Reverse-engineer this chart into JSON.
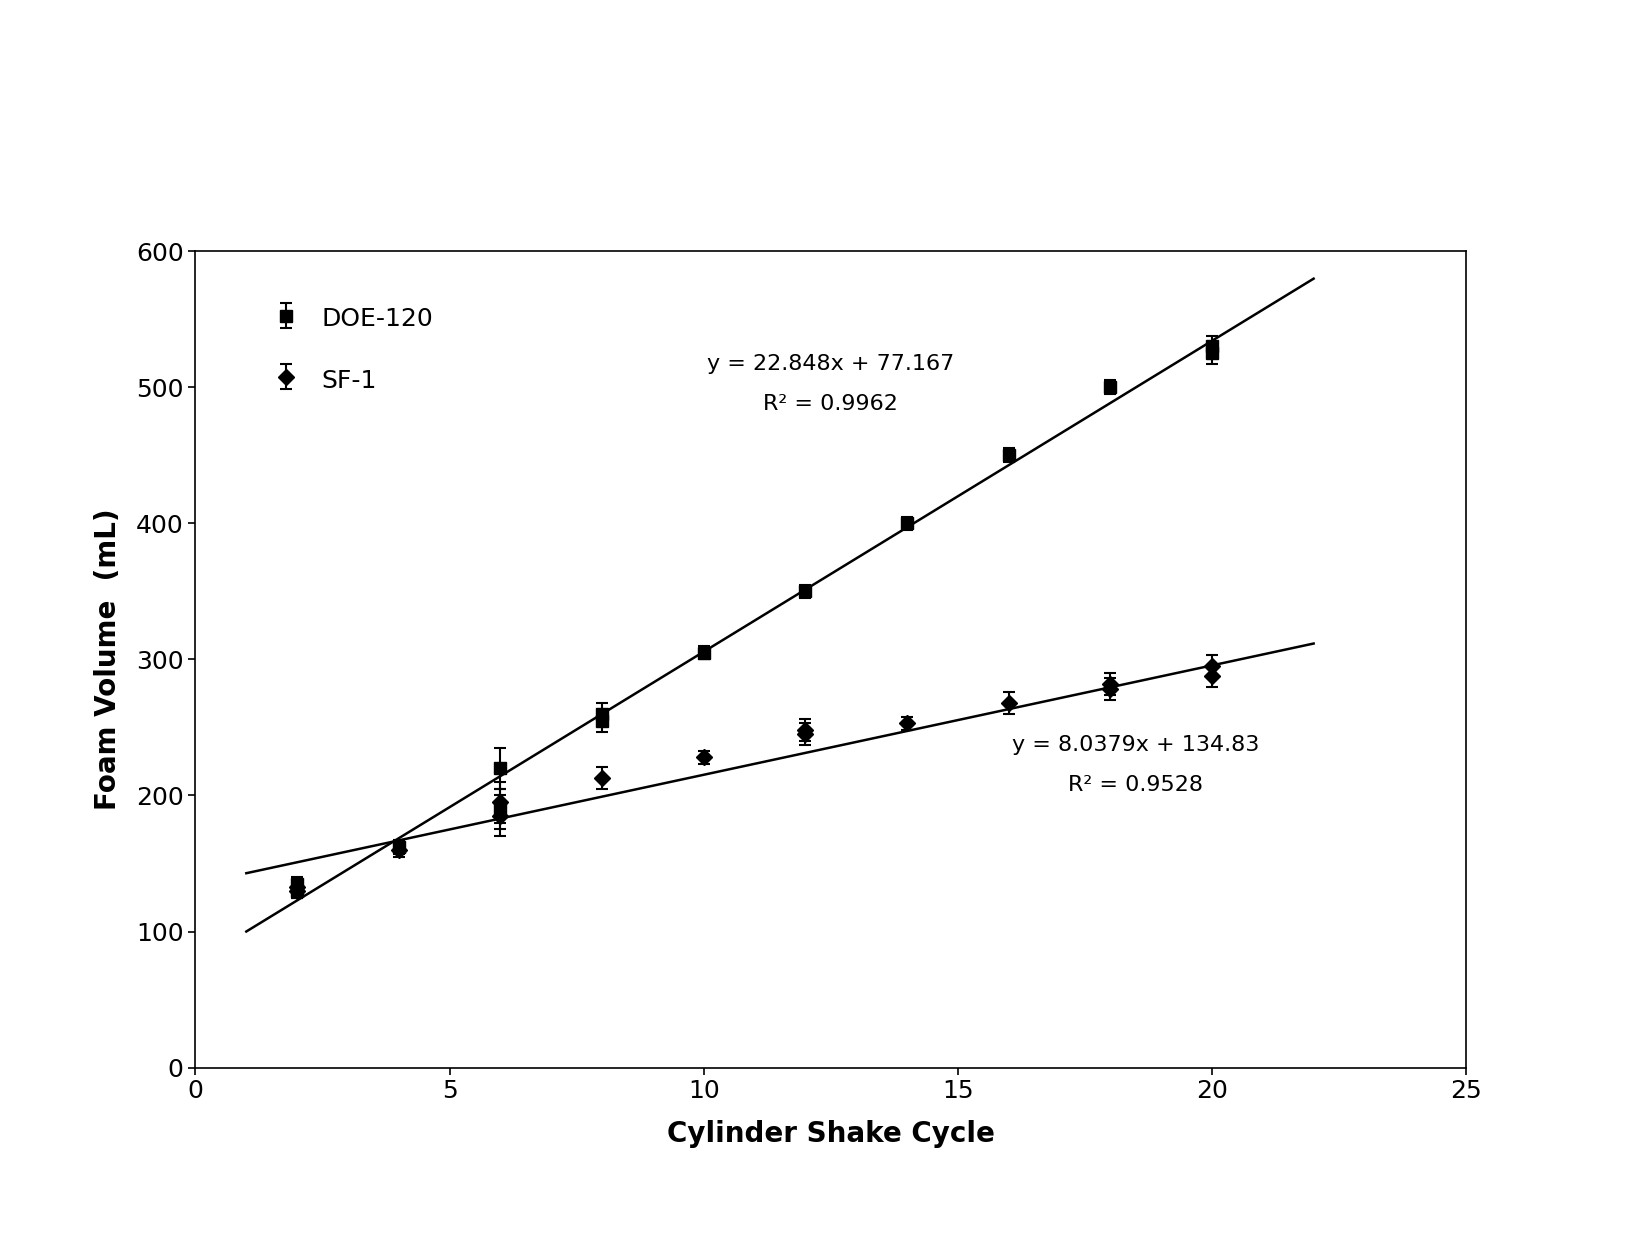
{
  "doe120_x": [
    2,
    2,
    4,
    6,
    6,
    8,
    8,
    10,
    12,
    14,
    16,
    18,
    20,
    20
  ],
  "doe120_y": [
    130,
    135,
    162,
    190,
    220,
    255,
    260,
    305,
    350,
    400,
    450,
    500,
    525,
    530
  ],
  "doe120_yerr": [
    5,
    5,
    5,
    15,
    15,
    8,
    8,
    5,
    5,
    5,
    5,
    5,
    8,
    8
  ],
  "sf1_x": [
    2,
    2,
    4,
    6,
    6,
    8,
    10,
    12,
    12,
    14,
    16,
    18,
    18,
    20,
    20
  ],
  "sf1_y": [
    130,
    133,
    160,
    185,
    195,
    213,
    228,
    245,
    248,
    253,
    268,
    278,
    282,
    288,
    295
  ],
  "sf1_yerr": [
    5,
    5,
    5,
    15,
    15,
    8,
    5,
    8,
    8,
    5,
    8,
    8,
    8,
    8,
    8
  ],
  "doe120_label": "DOE-120",
  "sf1_label": "SF-1",
  "doe120_eq": "y = 22.848x + 77.167",
  "doe120_r2": "R² = 0.9962",
  "sf1_eq": "y = 8.0379x + 134.83",
  "sf1_r2": "R² = 0.9528",
  "doe120_slope": 22.848,
  "doe120_intercept": 77.167,
  "sf1_slope": 8.0379,
  "sf1_intercept": 134.83,
  "xlabel": "Cylinder Shake Cycle",
  "ylabel": "Foam Volume  (mL)",
  "xlim": [
    0,
    25
  ],
  "ylim": [
    0,
    600
  ],
  "xticks": [
    0,
    5,
    10,
    15,
    20,
    25
  ],
  "yticks": [
    0,
    100,
    200,
    300,
    400,
    500,
    600
  ],
  "line_color": "#000000",
  "marker_color": "#000000",
  "bg_color": "#ffffff",
  "font_size_labels": 20,
  "font_size_ticks": 18,
  "font_size_legend": 18,
  "font_size_annotation": 16,
  "doe120_ann_x": 12.5,
  "doe120_ann_y1": 510,
  "doe120_ann_y2": 480,
  "sf1_ann_x": 18.5,
  "sf1_ann_y1": 230,
  "sf1_ann_y2": 200
}
